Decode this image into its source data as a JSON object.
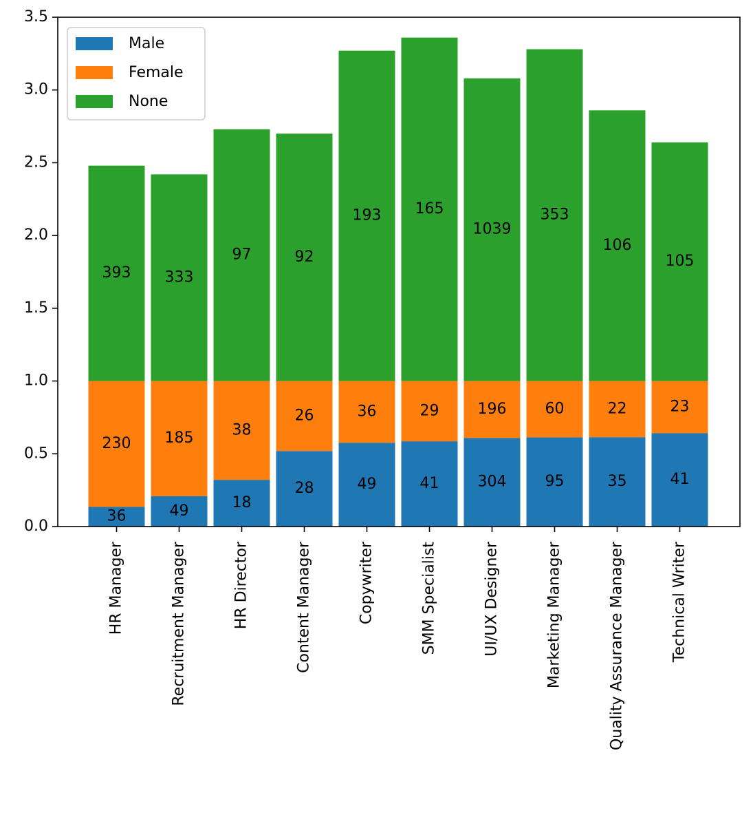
{
  "chart_data": {
    "type": "bar",
    "stacked": true,
    "title": "",
    "xlabel": "",
    "ylabel": "",
    "ylim": [
      0,
      3.5
    ],
    "yticks": [
      "0.0",
      "0.5",
      "1.0",
      "1.5",
      "2.0",
      "2.5",
      "3.0",
      "3.5"
    ],
    "grid": false,
    "legend_position": "top-left",
    "categories": [
      "HR Manager",
      "Recruitment Manager",
      "HR Director",
      "Content Manager",
      "Copywriter",
      "SMM Specialist",
      "UI/UX Designer",
      "Marketing Manager",
      "Quality Assurance Manager",
      "Technical Writer"
    ],
    "series": [
      {
        "name": "Male",
        "color": "#1f77b4",
        "values": [
          0.135,
          0.209,
          0.321,
          0.519,
          0.576,
          0.586,
          0.608,
          0.613,
          0.614,
          0.641
        ],
        "labels": [
          "36",
          "49",
          "18",
          "28",
          "49",
          "41",
          "304",
          "95",
          "35",
          "41"
        ]
      },
      {
        "name": "Female",
        "color": "#ff7f0e",
        "values": [
          0.865,
          0.791,
          0.679,
          0.481,
          0.424,
          0.414,
          0.392,
          0.387,
          0.386,
          0.359
        ],
        "labels": [
          "230",
          "185",
          "38",
          "26",
          "36",
          "29",
          "196",
          "60",
          "22",
          "23"
        ]
      },
      {
        "name": "None",
        "color": "#2ca02c",
        "values": [
          1.48,
          1.42,
          1.73,
          1.7,
          2.27,
          2.36,
          2.08,
          2.28,
          1.86,
          1.64
        ],
        "labels": [
          "393",
          "333",
          "97",
          "92",
          "193",
          "165",
          "1039",
          "353",
          "106",
          "105"
        ]
      }
    ]
  }
}
